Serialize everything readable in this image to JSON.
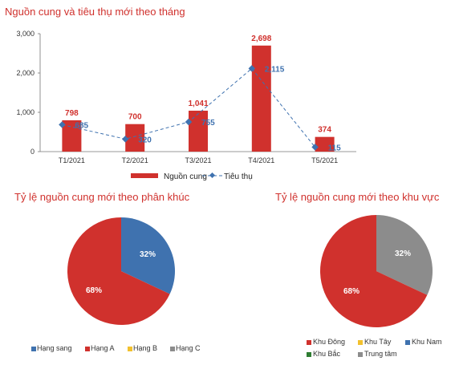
{
  "colors": {
    "red": "#d0312d",
    "blue": "#3f72af",
    "yellow": "#f2c12e",
    "green": "#2e7d32",
    "gray": "#8c8c8c",
    "title": "#d0312d"
  },
  "chart_data": [
    {
      "type": "bar",
      "title": "Nguồn cung và tiêu thụ mới theo tháng",
      "categories": [
        "T1/2021",
        "T2/2021",
        "T3/2021",
        "T4/2021",
        "T5/2021"
      ],
      "series": [
        {
          "name": "Nguồn cung",
          "kind": "bar",
          "color": "#d0312d",
          "values": [
            798,
            700,
            1041,
            2698,
            374
          ],
          "labels": [
            "798",
            "700",
            "1,041",
            "2,698",
            "374"
          ]
        },
        {
          "name": "Tiêu thụ",
          "kind": "line",
          "style": "dashed",
          "color": "#3f72af",
          "values": [
            685,
            320,
            755,
            2115,
            115
          ],
          "labels": [
            "685",
            "320",
            "755",
            "2,115",
            "115"
          ]
        }
      ],
      "ylim": [
        0,
        3000
      ],
      "yticks": [
        "0",
        "1,000",
        "2,000",
        "3,000"
      ],
      "ytick_values": [
        0,
        1000,
        2000,
        3000
      ],
      "legend_position": "bottom",
      "grid": false
    },
    {
      "type": "pie",
      "title": "Tỷ lệ nguồn cung mới theo phân khúc",
      "slices": [
        {
          "name": "Hạng sang",
          "value": 32,
          "label": "32%",
          "color": "#3f72af"
        },
        {
          "name": "Hạng A",
          "value": 68,
          "label": "68%",
          "color": "#d0312d"
        },
        {
          "name": "Hạng B",
          "value": 0,
          "label": "",
          "color": "#f2c12e"
        },
        {
          "name": "Hạng C",
          "value": 0,
          "label": "",
          "color": "#8c8c8c"
        }
      ],
      "legend_position": "bottom"
    },
    {
      "type": "pie",
      "title": "Tỷ lệ nguồn cung mới theo khu vực",
      "slices": [
        {
          "name": "Khu Đông",
          "value": 68,
          "label": "68%",
          "color": "#d0312d"
        },
        {
          "name": "Khu Tây",
          "value": 0,
          "label": "",
          "color": "#f2c12e"
        },
        {
          "name": "Khu Nam",
          "value": 0,
          "label": "",
          "color": "#3f72af"
        },
        {
          "name": "Khu Bắc",
          "value": 0,
          "label": "",
          "color": "#2e7d32"
        },
        {
          "name": "Trung tâm",
          "value": 32,
          "label": "32%",
          "color": "#8c8c8c"
        }
      ],
      "legend_position": "bottom"
    }
  ]
}
